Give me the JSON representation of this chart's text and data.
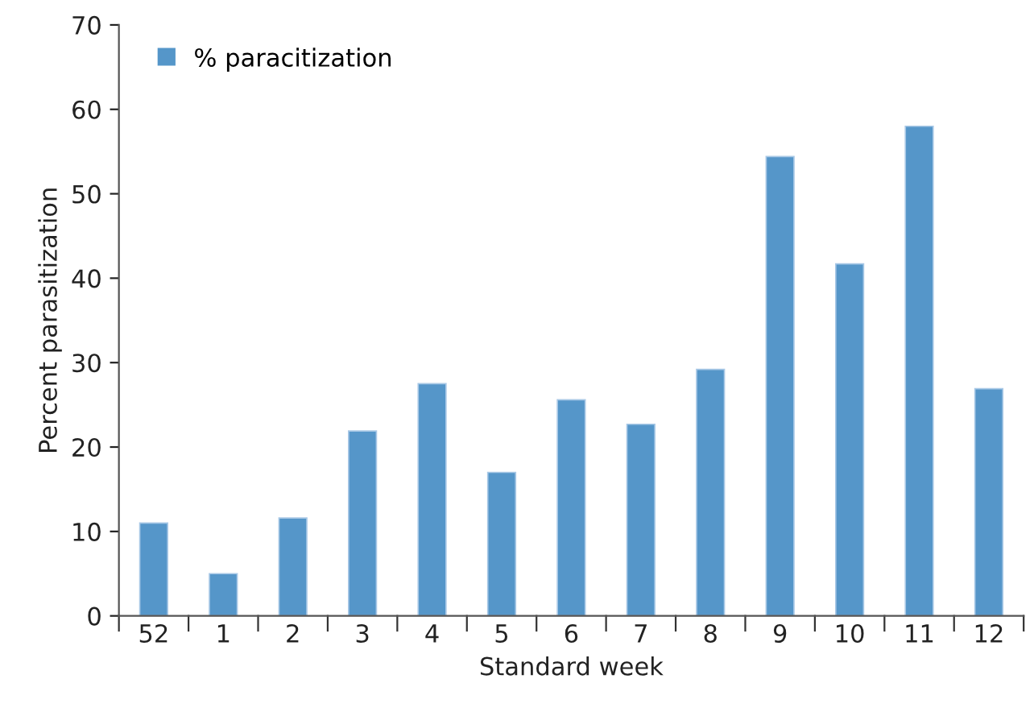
{
  "chart_data": {
    "type": "bar",
    "xlabel": "Standard week",
    "ylabel": "Percent parasitization",
    "categories": [
      "52",
      "1",
      "2",
      "3",
      "4",
      "5",
      "6",
      "7",
      "8",
      "9",
      "10",
      "11",
      "12"
    ],
    "series": [
      {
        "name": "% paracitization",
        "color": "#5596c9",
        "values": [
          11.0,
          5.0,
          11.6,
          21.9,
          27.5,
          17.0,
          25.6,
          22.7,
          29.2,
          54.4,
          41.7,
          58.0,
          26.9
        ]
      }
    ],
    "ylim": [
      0,
      70
    ],
    "yticks": [
      0,
      10,
      20,
      30,
      40,
      50,
      60,
      70
    ],
    "grid": false,
    "legend": "top left"
  }
}
